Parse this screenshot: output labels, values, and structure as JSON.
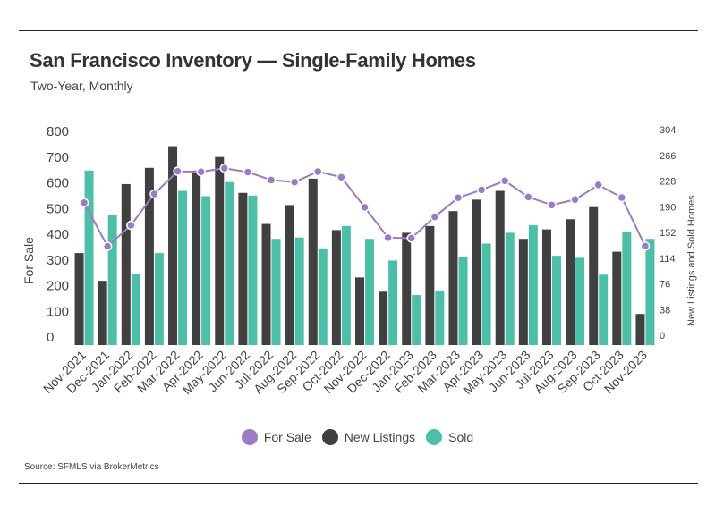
{
  "header": {
    "title": "San Francisco Inventory — Single-Family Homes",
    "subtitle": "Two-Year, Monthly"
  },
  "footer": {
    "source": "Source:  SFMLS via BrokerMetrics"
  },
  "legend": {
    "items": [
      {
        "label": "For Sale",
        "color": "#9b7cc4"
      },
      {
        "label": "New Listings",
        "color": "#404040"
      },
      {
        "label": "Sold",
        "color": "#4dbfa8"
      }
    ]
  },
  "chart_data": {
    "type": "bar",
    "title": "San Francisco Inventory — Single-Family Homes",
    "subtitle": "Two-Year, Monthly",
    "ylabel": "For Sale",
    "y2label": "New Listings and Sold Homes",
    "ylim": [
      0,
      800
    ],
    "y_ticks": [
      "0",
      "100",
      "200",
      "300",
      "400",
      "500",
      "600",
      "700",
      "800"
    ],
    "y2lim": [
      0,
      304
    ],
    "y2_ticks": [
      "0",
      "38",
      "76",
      "114",
      "152",
      "190",
      "228",
      "266",
      "304"
    ],
    "legend_position": "bottom-center",
    "grid": false,
    "categories": [
      "Nov-2021",
      "Dec-2021",
      "Jan-2022",
      "Feb-2022",
      "Mar-2022",
      "Apr-2022",
      "May-2022",
      "Jun-2022",
      "Jul-2022",
      "Aug-2022",
      "Sep-2022",
      "Oct-2022",
      "Nov-2022",
      "Dec-2022",
      "Jan-2023",
      "Feb-2023",
      "Mar-2023",
      "Apr-2023",
      "May-2023",
      "Jun-2023",
      "Jul-2023",
      "Aug-2023",
      "Sep-2023",
      "Oct-2023",
      "Nov-2023"
    ],
    "series": [
      {
        "name": "For Sale",
        "kind": "line",
        "axis": "left",
        "color": "#9b7cc4",
        "values": [
          554,
          384,
          466,
          588,
          676,
          674,
          688,
          673,
          642,
          634,
          675,
          653,
          536,
          418,
          416,
          499,
          573,
          604,
          639,
          576,
          545,
          566,
          623,
          574,
          385
        ]
      },
      {
        "name": "New Listings",
        "kind": "bar",
        "axis": "right",
        "color": "#404040",
        "values": [
          136,
          95,
          238,
          262,
          294,
          258,
          278,
          225,
          179,
          207,
          246,
          170,
          100,
          79,
          166,
          176,
          198,
          215,
          228,
          157,
          171,
          186,
          204,
          138,
          46
        ]
      },
      {
        "name": "Sold",
        "kind": "bar",
        "axis": "right",
        "color": "#4dbfa8",
        "values": [
          258,
          192,
          105,
          136,
          228,
          220,
          241,
          221,
          157,
          159,
          143,
          176,
          157,
          125,
          74,
          80,
          130,
          150,
          166,
          177,
          132,
          129,
          104,
          168,
          157
        ]
      }
    ]
  }
}
